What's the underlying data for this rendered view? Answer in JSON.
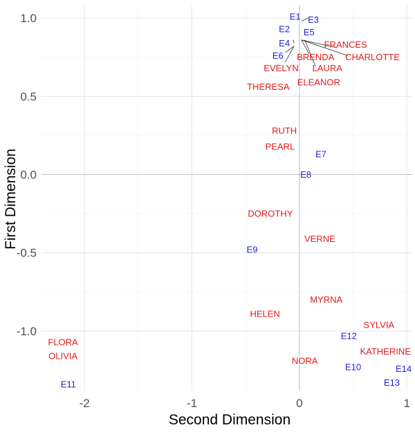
{
  "chart_data": {
    "type": "scatter",
    "title": "",
    "xlabel": "Second Dimension",
    "ylabel": "First Dimension",
    "xlim": [
      -2.4,
      1.05
    ],
    "ylim": [
      -1.38,
      1.08
    ],
    "x_ticks": [
      -2,
      -1,
      0,
      1
    ],
    "x_tick_labels": [
      "-2",
      "-1",
      "0",
      "1"
    ],
    "y_ticks": [
      -1.0,
      -0.5,
      0.0,
      0.5,
      1.0
    ],
    "y_tick_labels": [
      "-1.0",
      "-0.5",
      "0.0",
      "0.5",
      "1.0"
    ],
    "grid": true,
    "colors": {
      "women": "#e31a1c",
      "events": "#1f1fd6"
    },
    "series": [
      {
        "group": "women",
        "points": [
          {
            "label": "FRANCES",
            "x": 0.43,
            "y": 0.83
          },
          {
            "label": "CHARLOTTE",
            "x": 0.68,
            "y": 0.75
          },
          {
            "label": "BRENDA",
            "x": 0.15,
            "y": 0.75
          },
          {
            "label": "EVELYN",
            "x": -0.17,
            "y": 0.68
          },
          {
            "label": "LAURA",
            "x": 0.26,
            "y": 0.68
          },
          {
            "label": "ELEANOR",
            "x": 0.18,
            "y": 0.59
          },
          {
            "label": "THERESA",
            "x": -0.29,
            "y": 0.56
          },
          {
            "label": "RUTH",
            "x": -0.14,
            "y": 0.28
          },
          {
            "label": "PEARL",
            "x": -0.18,
            "y": 0.18
          },
          {
            "label": "DOROTHY",
            "x": -0.27,
            "y": -0.25
          },
          {
            "label": "VERNE",
            "x": 0.19,
            "y": -0.41
          },
          {
            "label": "MYRNA",
            "x": 0.25,
            "y": -0.8
          },
          {
            "label": "HELEN",
            "x": -0.32,
            "y": -0.89
          },
          {
            "label": "SYLVIA",
            "x": 0.74,
            "y": -0.96
          },
          {
            "label": "KATHERINE",
            "x": 0.8,
            "y": -1.13
          },
          {
            "label": "NORA",
            "x": 0.05,
            "y": -1.19
          },
          {
            "label": "FLORA",
            "x": -2.2,
            "y": -1.07
          },
          {
            "label": "OLIVIA",
            "x": -2.2,
            "y": -1.16
          }
        ]
      },
      {
        "group": "events",
        "points": [
          {
            "label": "E1",
            "x": -0.04,
            "y": 1.01
          },
          {
            "label": "E3",
            "x": 0.13,
            "y": 0.99
          },
          {
            "label": "E2",
            "x": -0.14,
            "y": 0.93
          },
          {
            "label": "E5",
            "x": 0.09,
            "y": 0.91
          },
          {
            "label": "E4",
            "x": -0.14,
            "y": 0.84
          },
          {
            "label": "E6",
            "x": -0.2,
            "y": 0.76
          },
          {
            "label": "E7",
            "x": 0.2,
            "y": 0.13
          },
          {
            "label": "E8",
            "x": 0.06,
            "y": 0.0
          },
          {
            "label": "E9",
            "x": -0.44,
            "y": -0.48
          },
          {
            "label": "E12",
            "x": 0.46,
            "y": -1.03
          },
          {
            "label": "E10",
            "x": 0.5,
            "y": -1.23
          },
          {
            "label": "E14",
            "x": 0.97,
            "y": -1.24
          },
          {
            "label": "E13",
            "x": 0.86,
            "y": -1.33
          },
          {
            "label": "E11",
            "x": -2.15,
            "y": -1.34
          }
        ]
      }
    ],
    "leader_lines": [
      {
        "from": [
          0.02,
          0.98
        ],
        "to": [
          0.08,
          1.0
        ]
      },
      {
        "from": [
          0.02,
          0.86
        ],
        "to": [
          0.35,
          0.81
        ]
      },
      {
        "from": [
          0.02,
          0.86
        ],
        "to": [
          0.45,
          0.76
        ]
      },
      {
        "from": [
          0.02,
          0.86
        ],
        "to": [
          0.09,
          0.77
        ]
      },
      {
        "from": [
          0.05,
          0.86
        ],
        "to": [
          0.15,
          0.69
        ]
      },
      {
        "from": [
          -0.05,
          0.84
        ],
        "to": [
          -0.06,
          0.86
        ]
      },
      {
        "from": [
          -0.05,
          0.82
        ],
        "to": [
          -0.13,
          0.78
        ]
      },
      {
        "from": [
          -0.05,
          0.82
        ],
        "to": [
          -0.13,
          0.72
        ]
      }
    ]
  }
}
